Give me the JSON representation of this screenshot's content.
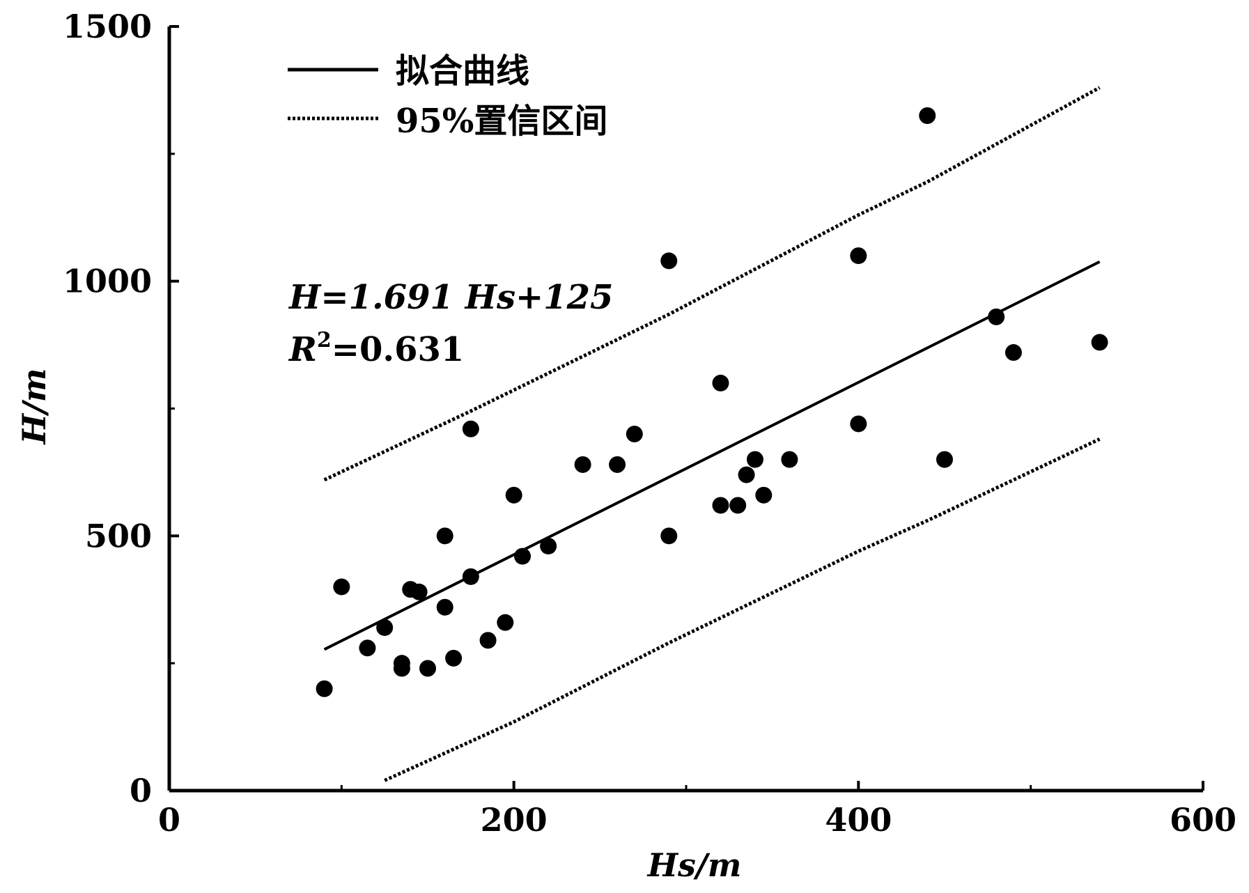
{
  "chart_data": {
    "type": "scatter",
    "xlabel": "Hs/m",
    "ylabel": "H/m",
    "xlim": [
      0,
      600
    ],
    "ylim": [
      0,
      1500
    ],
    "x_ticks": [
      "0",
      "200",
      "400",
      "600"
    ],
    "y_ticks": [
      "0",
      "500",
      "1000",
      "1500"
    ],
    "grid": false,
    "legend": {
      "placement": "top-left",
      "entries": [
        {
          "label": "拟合曲线",
          "style": "solid"
        },
        {
          "label": "95%置信区间",
          "style": "dotted"
        }
      ]
    },
    "annotations": {
      "equation": "H=1.691 Hs+125",
      "r2_label": "R",
      "r2_sup": "2",
      "r2_value": "=0.631"
    },
    "points": [
      [
        90,
        200
      ],
      [
        100,
        400
      ],
      [
        115,
        280
      ],
      [
        125,
        320
      ],
      [
        135,
        250
      ],
      [
        135,
        240
      ],
      [
        140,
        395
      ],
      [
        145,
        390
      ],
      [
        150,
        240
      ],
      [
        160,
        360
      ],
      [
        160,
        500
      ],
      [
        165,
        260
      ],
      [
        175,
        420
      ],
      [
        175,
        710
      ],
      [
        185,
        295
      ],
      [
        195,
        330
      ],
      [
        200,
        580
      ],
      [
        205,
        460
      ],
      [
        220,
        480
      ],
      [
        240,
        640
      ],
      [
        260,
        640
      ],
      [
        270,
        700
      ],
      [
        290,
        1040
      ],
      [
        290,
        500
      ],
      [
        320,
        800
      ],
      [
        320,
        560
      ],
      [
        330,
        560
      ],
      [
        335,
        620
      ],
      [
        340,
        650
      ],
      [
        345,
        580
      ],
      [
        360,
        650
      ],
      [
        400,
        1050
      ],
      [
        400,
        720
      ],
      [
        440,
        1325
      ],
      [
        450,
        650
      ],
      [
        480,
        930
      ],
      [
        490,
        860
      ],
      [
        540,
        880
      ]
    ],
    "fit_line": {
      "slope": 1.691,
      "intercept": 125,
      "x_range": [
        90,
        540
      ]
    },
    "upper_ci": [
      [
        90,
        610
      ],
      [
        175,
        745
      ],
      [
        290,
        935
      ],
      [
        400,
        1130
      ],
      [
        440,
        1195
      ],
      [
        540,
        1380
      ]
    ],
    "lower_ci": [
      [
        125,
        20
      ],
      [
        200,
        135
      ],
      [
        290,
        290
      ],
      [
        400,
        470
      ],
      [
        440,
        530
      ],
      [
        540,
        690
      ]
    ]
  }
}
